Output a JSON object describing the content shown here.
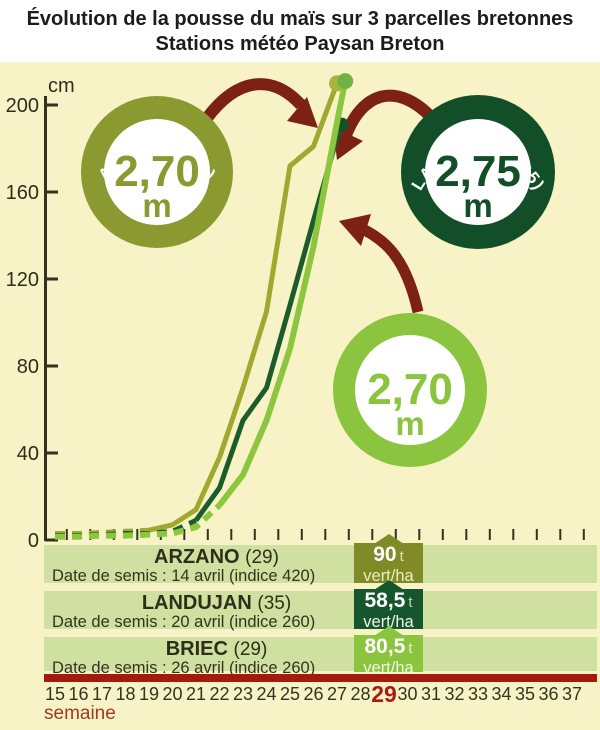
{
  "title": {
    "line1": "Évolution de la pousse du maïs sur 3 parcelles bretonnes",
    "line2": "Stations météo Paysan Breton"
  },
  "axis": {
    "unit_label": "cm",
    "x_label": "semaine",
    "y_ticks": [
      200,
      160,
      120,
      80,
      40,
      0
    ],
    "weeks": [
      15,
      16,
      17,
      18,
      19,
      20,
      21,
      22,
      23,
      24,
      25,
      26,
      27,
      28,
      29,
      30,
      31,
      32,
      33,
      34,
      35,
      36,
      37
    ],
    "highlighted_week": 29
  },
  "badges": [
    {
      "label": "ARZANO (29)",
      "value": "2,70",
      "unit": "m",
      "color": "#8b9a30"
    },
    {
      "label": "LANDUJAN (35)",
      "value": "2,75",
      "unit": "m",
      "color": "#124f28"
    },
    {
      "label": "BRIEC (29)",
      "value": "2,70",
      "unit": "m",
      "color": "#8bc53f"
    }
  ],
  "table": {
    "rows": [
      {
        "station": "ARZANO",
        "dept": "(29)",
        "date_line": "Date de semis : 14 avril (indice 420)",
        "yield_value": "90",
        "yield_unit": "t",
        "yield_per": "vert/ha",
        "box_color": "#7e8b26"
      },
      {
        "station": "LANDUJAN",
        "dept": "(35)",
        "date_line": "Date de semis : 20 avril (indice 260)",
        "yield_value": "58,5",
        "yield_unit": "t",
        "yield_per": "vert/ha",
        "box_color": "#15562e"
      },
      {
        "station": "BRIEC",
        "dept": "(29)",
        "date_line": "Date de semis : 26 avril (indice 260)",
        "yield_value": "80,5",
        "yield_unit": "t",
        "yield_per": "vert/ha",
        "box_color": "#8bc53f"
      }
    ]
  },
  "colors": {
    "background": "#f8f3c6",
    "band": "#cfe0a0",
    "axis": "#32321f",
    "arrow_red": "#7c2113",
    "bar_red": "#a21b0e",
    "week_highlight": "#a81c10"
  },
  "chart_data": {
    "type": "line",
    "title": "Évolution de la pousse du maïs sur 3 parcelles bretonnes",
    "subtitle": "Stations météo Paysan Breton",
    "xlabel": "semaine",
    "ylabel": "cm",
    "xlim": [
      15,
      37
    ],
    "ylim": [
      0,
      215
    ],
    "grid": false,
    "legend_position": "bottom-table",
    "x": [
      15,
      16,
      17,
      18,
      19,
      20,
      21,
      22,
      23,
      24,
      25,
      26,
      27
    ],
    "series": [
      {
        "name": "Arzano (29)",
        "sowing": "14 avril (indice 420)",
        "final_height_m": "2,70 m",
        "yield": "90 t vert/ha",
        "color": "#9fa930",
        "dot_color": "#a9b33e",
        "width": 5,
        "dot_r": 8,
        "dash_until_week": 19,
        "values": [
          3,
          3,
          3.5,
          4,
          4.5,
          7,
          14,
          38,
          70,
          105,
          172,
          181,
          210
        ]
      },
      {
        "name": "Landujan (35)",
        "sowing": "20 avril (indice 260)",
        "final_height_m": "2,75 m",
        "yield": "58,5 t vert/ha",
        "color": "#1b5c2a",
        "dot_color": "#145129",
        "width": 5,
        "dot_r": 7,
        "dash_until_week": 21,
        "values": [
          2,
          2,
          2.5,
          3,
          3,
          4,
          9,
          24,
          55,
          70,
          108,
          147,
          185
        ],
        "end": {
          "week": 27.2,
          "cm": 191
        }
      },
      {
        "name": "Briec (29)",
        "sowing": "26 avril (indice 260)",
        "final_height_m": "2,70 m",
        "yield": "80,5 t vert/ha",
        "color": "#8cc63f",
        "dot_color": "#6fb347",
        "width": 6,
        "dot_r": 8,
        "dash_until_week": 22,
        "values": [
          1.5,
          1.5,
          2,
          2,
          2.5,
          3,
          6,
          16,
          30,
          55,
          88,
          135,
          192
        ],
        "end": {
          "week": 27.35,
          "cm": 211
        }
      }
    ]
  }
}
